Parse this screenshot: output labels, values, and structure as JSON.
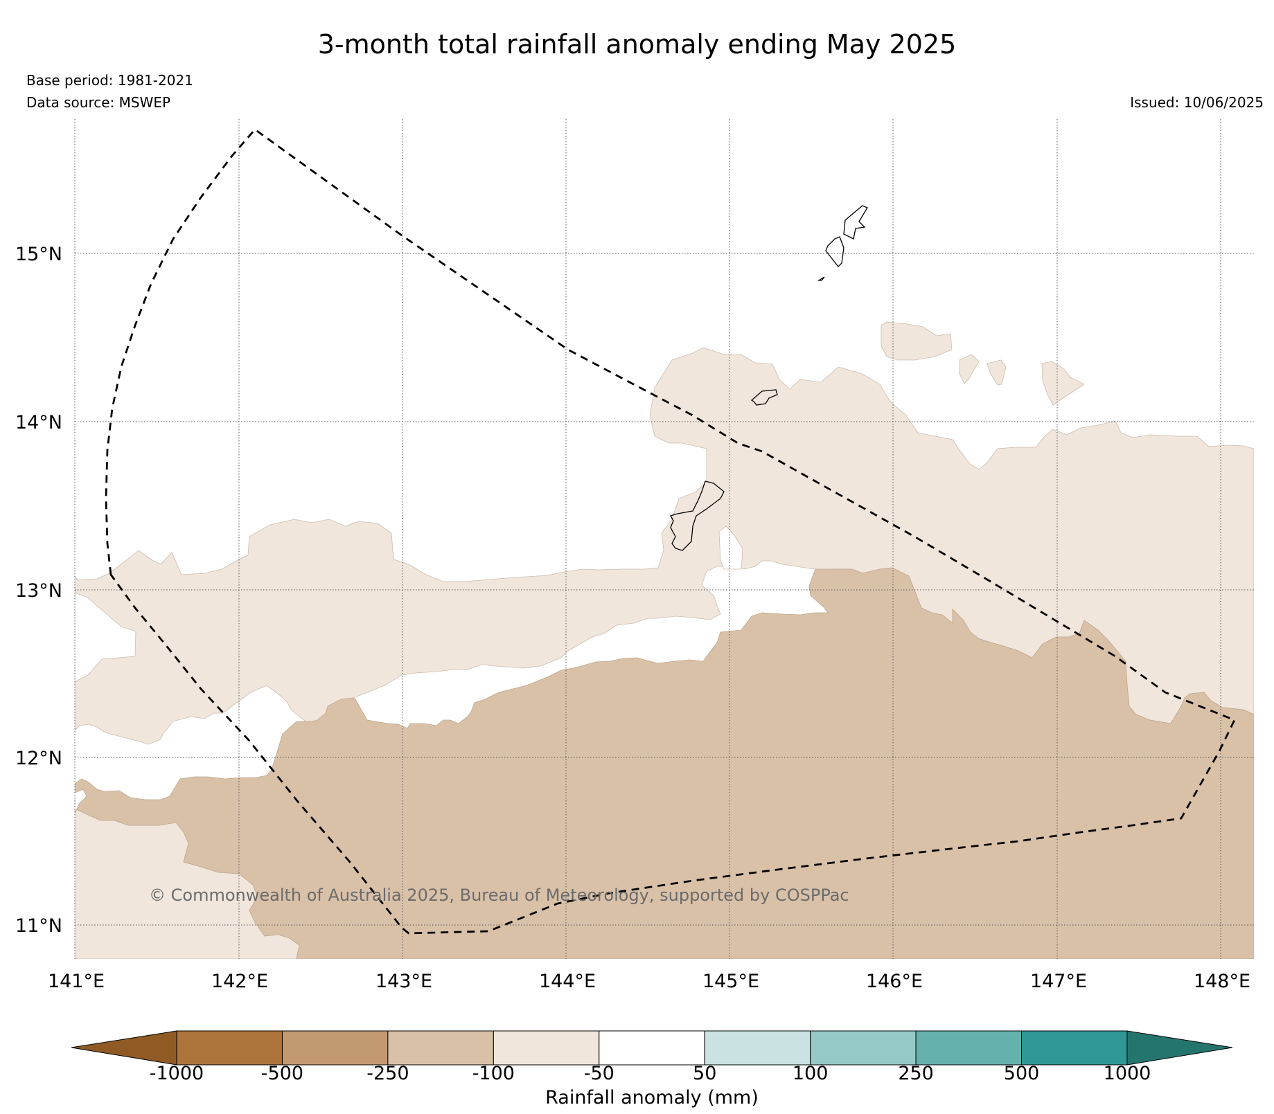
{
  "title": "3-month total rainfall anomaly ending May 2025",
  "base_period": "Base period: 1981-2021",
  "data_source": "Data source: MSWEP",
  "issued": "Issued: 10/06/2025",
  "copyright": "© Commonwealth of Australia 2025, Bureau of Meteorology, supported by COSPPac",
  "map": {
    "lon_ticks": [
      "141°E",
      "142°E",
      "143°E",
      "144°E",
      "145°E",
      "146°E",
      "147°E",
      "148°E"
    ],
    "lat_ticks": [
      "15°N",
      "14°N",
      "13°N",
      "12°N",
      "11°N"
    ],
    "lon_range": [
      141,
      148.2
    ],
    "lat_range": [
      10.8,
      15.8
    ],
    "gridlines": true,
    "anomaly_classes_shown": [
      "-100 to -50",
      "-250 to -100"
    ],
    "boundary_style": "dashed"
  },
  "colorbar": {
    "label": "Rainfall anomaly (mm)",
    "ticks": [
      "-1000",
      "-500",
      "-250",
      "-100",
      "-50",
      "50",
      "100",
      "250",
      "500",
      "1000"
    ],
    "colors": [
      "#8f5a23",
      "#ad743c",
      "#c39a6f",
      "#d9c1a8",
      "#f0e6dc",
      "#ffffff",
      "#c8e3e2",
      "#95c9c8",
      "#65b1ae",
      "#2f9794",
      "#25756f"
    ],
    "extend": "both"
  }
}
